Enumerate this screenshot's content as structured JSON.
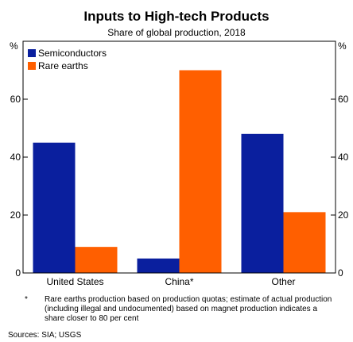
{
  "chart_data": {
    "type": "bar",
    "title": "Inputs to High-tech Products",
    "subtitle": "Share of global production, 2018",
    "y_unit": "%",
    "categories": [
      "United States",
      "China*",
      "Other"
    ],
    "series": [
      {
        "name": "Semiconductors",
        "color": "#0a1f9e",
        "values": [
          45,
          5,
          48
        ]
      },
      {
        "name": "Rare earths",
        "color": "#ff5f00",
        "values": [
          9,
          70,
          21
        ]
      }
    ],
    "ylim": [
      0,
      80
    ],
    "yticks": [
      0,
      20,
      40,
      60
    ],
    "grid": false,
    "legend_position": "top-left"
  },
  "footnote": {
    "marker": "*",
    "text": "Rare earths production based on production quotas; estimate of actual production (including illegal and undocumented) based on magnet production indicates a share closer to 80 per cent"
  },
  "sources": "Sources: SIA; USGS"
}
